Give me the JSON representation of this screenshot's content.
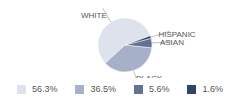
{
  "chart_data": {
    "type": "pie",
    "categories": [
      "WHITE",
      "BLACK",
      "ASIAN",
      "HISPANIC"
    ],
    "values": [
      56.3,
      36.5,
      5.6,
      1.6
    ],
    "value_labels": [
      "56.3%",
      "36.5%",
      "5.6%",
      "1.6%"
    ],
    "colors": [
      "#dde2ec",
      "#a6b0c6",
      "#617294",
      "#2f4468"
    ]
  }
}
